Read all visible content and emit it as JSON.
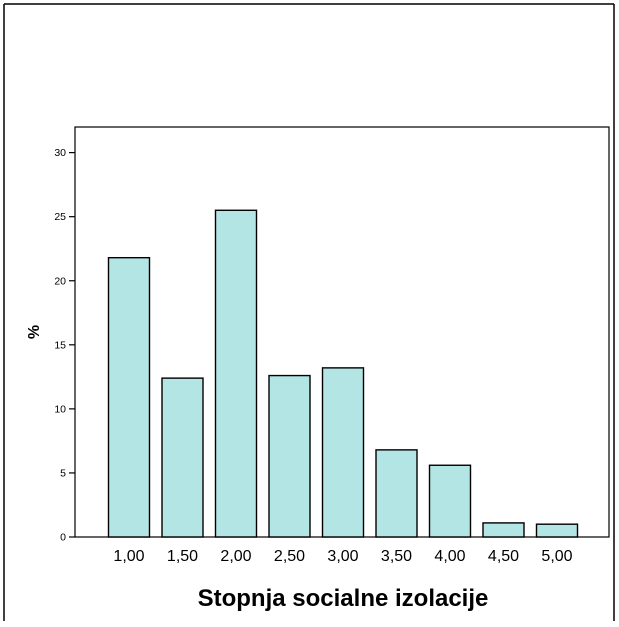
{
  "chart_data": {
    "type": "bar",
    "categories": [
      "1,00",
      "1,50",
      "2,00",
      "2,50",
      "3,00",
      "3,50",
      "4,00",
      "4,50",
      "5,00"
    ],
    "values": [
      21.8,
      12.4,
      25.5,
      12.6,
      13.2,
      6.8,
      5.6,
      1.1,
      1.0
    ],
    "xlabel": "Stopnja socialne izolacije",
    "ylabel": "%",
    "ylim": [
      0,
      32
    ],
    "yticks": [
      "0",
      "5",
      "10",
      "15",
      "20",
      "25",
      "30"
    ],
    "ytick_values": [
      0,
      5,
      10,
      15,
      20,
      25,
      30
    ],
    "grid": false,
    "colors": {
      "bar_fill": "#b3e5e5",
      "bar_stroke": "#000000",
      "frame": "#000000"
    }
  }
}
